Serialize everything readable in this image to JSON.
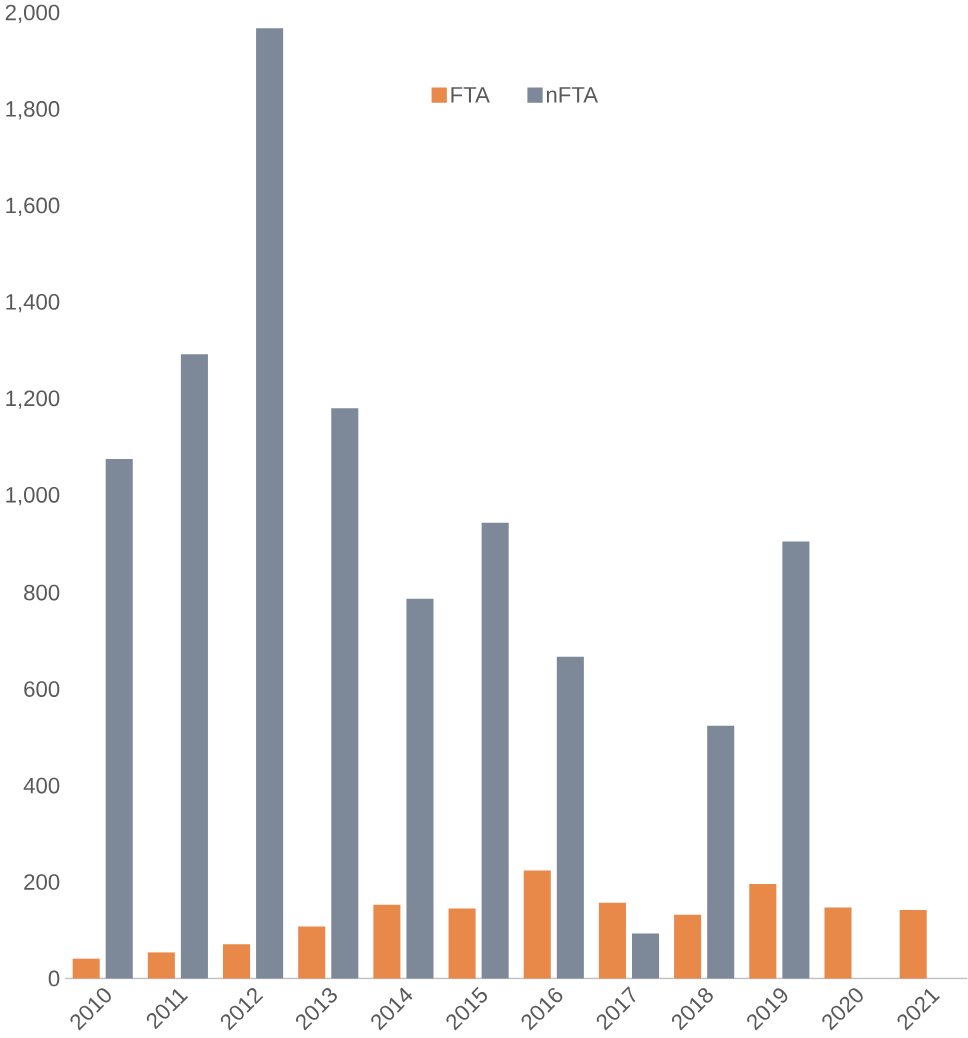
{
  "chart_data": {
    "type": "bar",
    "categories": [
      "2010",
      "2011",
      "2012",
      "2013",
      "2014",
      "2015",
      "2016",
      "2017",
      "2018",
      "2019",
      "2020",
      "2021"
    ],
    "series": [
      {
        "name": "FTA",
        "color": "#e8894a",
        "values": [
          41,
          54,
          71,
          108,
          153,
          145,
          224,
          157,
          132,
          196,
          147,
          142
        ]
      },
      {
        "name": "nFTA",
        "color": "#7d8999",
        "values": [
          1077,
          1294,
          1970,
          1182,
          787,
          945,
          667,
          93,
          524,
          906,
          null,
          null
        ]
      }
    ],
    "ylim": [
      0,
      2000
    ],
    "yticks": [
      {
        "value": 0,
        "label": "0"
      },
      {
        "value": 200,
        "label": "200"
      },
      {
        "value": 400,
        "label": "400"
      },
      {
        "value": 600,
        "label": "600"
      },
      {
        "value": 800,
        "label": "800"
      },
      {
        "value": 1000,
        "label": "1,000"
      },
      {
        "value": 1200,
        "label": "1,200"
      },
      {
        "value": 1400,
        "label": "1,400"
      },
      {
        "value": 1600,
        "label": "1,600"
      },
      {
        "value": 1800,
        "label": "1,800"
      },
      {
        "value": 2000,
        "label": "2,000"
      }
    ],
    "grid": false,
    "legend": "top"
  }
}
